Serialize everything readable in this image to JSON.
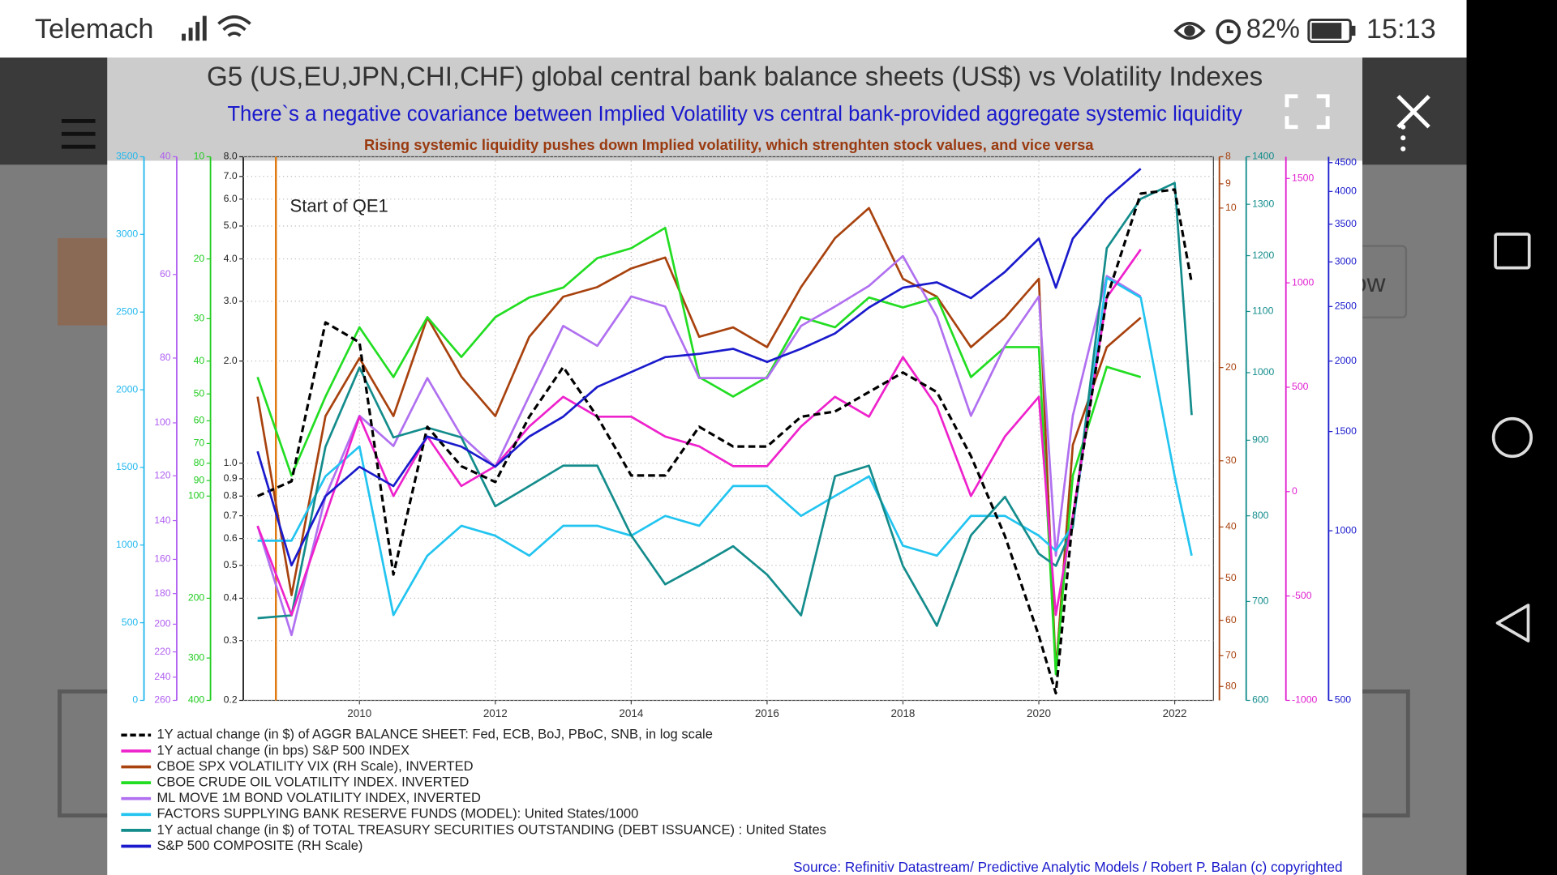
{
  "status_bar": {
    "carrier": "Telemach",
    "battery": "82%",
    "time": "15:13"
  },
  "background_text": "ow",
  "chart_data": {
    "type": "line",
    "title": "G5 (US,EU,JPN,CHI,CHF) global central bank balance sheets (US$) vs Volatility Indexes",
    "subtitle": "There`s a negative covariance between Implied Volatility vs central bank-provided aggregate systemic liquidity",
    "note": "Rising systemic liquidity pushes down Implied volatility, which strenghten stock values, and vice versa",
    "source": "Source: Refinitiv Datastream/ Predictive Analytic Models / Robert P. Balan (c) copyrighted",
    "annotation": {
      "text": "Start of QE1",
      "x": 2008.77,
      "color": "#e07a10"
    },
    "legend": "bottom",
    "x": [
      2008.5,
      2009,
      2009.5,
      2010,
      2010.5,
      2011,
      2011.5,
      2012,
      2012.5,
      2013,
      2013.5,
      2014,
      2014.5,
      2015,
      2015.5,
      2016,
      2016.5,
      2017,
      2017.5,
      2018,
      2018.5,
      2019,
      2019.5,
      2020,
      2020.25,
      2020.5,
      2021,
      2021.5,
      2022,
      2022.25
    ],
    "xlim": [
      2008.29,
      2022.57
    ],
    "xticks": [
      2010,
      2012,
      2014,
      2016,
      2018,
      2020,
      2022
    ],
    "axes": [
      {
        "side": "left",
        "color": "#22b8ee",
        "log": false,
        "ylim": [
          0,
          3500
        ],
        "yticks": [
          0,
          500,
          1000,
          1500,
          2000,
          2500,
          3000,
          3500
        ]
      },
      {
        "side": "left",
        "color": "#b060f0",
        "log": true,
        "ylim": [
          260,
          40
        ],
        "yticks": [
          40,
          60,
          80,
          100,
          120,
          140,
          160,
          180,
          200,
          220,
          240,
          260
        ]
      },
      {
        "side": "left",
        "color": "#22cc22",
        "log": true,
        "ylim": [
          400,
          10
        ],
        "yticks": [
          10,
          20,
          30,
          40,
          50,
          60,
          70,
          80,
          90,
          100,
          200,
          300,
          400
        ]
      },
      {
        "side": "left",
        "color": "#222222",
        "log": true,
        "grid": true,
        "ylim": [
          0.2,
          8
        ],
        "yticks": [
          0.2,
          0.3,
          0.4,
          0.5,
          0.6,
          0.7,
          0.8,
          0.9,
          {
            "value": 1,
            "label": "1.0"
          },
          {
            "value": 2,
            "label": "2.0"
          },
          {
            "value": 3,
            "label": "3.0"
          },
          {
            "value": 4,
            "label": "4.0"
          },
          {
            "value": 5,
            "label": "5.0"
          },
          {
            "value": 6,
            "label": "6.0"
          },
          {
            "value": 7,
            "label": "7.0"
          },
          {
            "value": 8,
            "label": "8.0"
          }
        ]
      },
      {
        "side": "right",
        "color": "#a8420e",
        "log": true,
        "ylim": [
          85,
          8
        ],
        "yticks": [
          8,
          9,
          10,
          20,
          30,
          40,
          50,
          60,
          70,
          80
        ]
      },
      {
        "side": "right",
        "color": "#148c8c",
        "log": true,
        "ylim": [
          600,
          1400
        ],
        "yticks": [
          600,
          700,
          800,
          900,
          1000,
          1100,
          1200,
          1300,
          1400
        ]
      },
      {
        "side": "right",
        "color": "#e020d0",
        "log": false,
        "ylim": [
          -1000,
          1604
        ],
        "yticks": [
          -1000,
          -500,
          0,
          500,
          1000,
          1500
        ]
      },
      {
        "side": "right",
        "color": "#1a1acc",
        "log": true,
        "ylim": [
          500,
          4610
        ],
        "yticks": [
          500,
          1000,
          1500,
          2000,
          2500,
          3000,
          3500,
          4000,
          4500
        ]
      }
    ],
    "series": [
      {
        "name": "1Y actual change (in $) of AGGR BALANCE SHEET: Fed, ECB, BoJ, PBoC, SNB, in log scale",
        "color": "#000000",
        "dash": true,
        "axis": 3,
        "values": [
          0.8,
          0.885,
          2.6,
          2.27,
          0.47,
          1.28,
          0.98,
          0.88,
          1.37,
          1.92,
          1.37,
          0.92,
          0.92,
          1.28,
          1.12,
          1.12,
          1.37,
          1.42,
          1.62,
          1.85,
          1.62,
          1.05,
          0.61,
          0.31,
          0.21,
          0.69,
          3.07,
          6.23,
          6.4,
          3.4
        ]
      },
      {
        "name": "1Y actual change (in bps) S&P 500 INDEX",
        "color": "#ee22cc",
        "axis": 6,
        "values": [
          -164,
          -591,
          -116,
          359,
          -21,
          264,
          27,
          122,
          312,
          454,
          359,
          359,
          264,
          217,
          122,
          122,
          312,
          454,
          359,
          644,
          407,
          -21,
          264,
          454,
          -591,
          -116,
          930,
          1160,
          null,
          null
        ]
      },
      {
        "name": "CBOE SPX VOLATILITY VIX (RH Scale), INVERTED",
        "color": "#a8420e",
        "axis": 4,
        "values": [
          22.7,
          53.8,
          24.7,
          19.2,
          24.7,
          16.1,
          20.8,
          24.7,
          17.5,
          14.7,
          14.1,
          13,
          12.4,
          17.5,
          16.8,
          18.3,
          14.1,
          11.4,
          10,
          13.6,
          14.7,
          18.3,
          16.1,
          13.6,
          75,
          28,
          18.3,
          16.1,
          null,
          null
        ]
      },
      {
        "name": "CBOE CRUDE OIL VOLATILITY INDEX. INVERTED",
        "color": "#22dd22",
        "axis": 2,
        "values": [
          44.6,
          87,
          50.9,
          31.8,
          44.6,
          29.7,
          38.9,
          29.7,
          26,
          24.3,
          19.9,
          18.6,
          16.2,
          44.6,
          50.9,
          44.6,
          29.7,
          31.8,
          26,
          27.8,
          26,
          44.6,
          36.4,
          36.4,
          335,
          87,
          41.6,
          44.6,
          null,
          null
        ]
      },
      {
        "name": "ML MOVE 1M BOND VOLATILITY INDEX, INVERTED",
        "color": "#b070f0",
        "axis": 1,
        "values": [
          142.6,
          207.6,
          128.8,
          97.6,
          108.3,
          85.7,
          104.6,
          116.4,
          91.1,
          71.6,
          76.7,
          64.7,
          67,
          85.7,
          85.7,
          85.7,
          71.6,
          67,
          62.4,
          56.3,
          69.4,
          97.6,
          76.7,
          64.7,
          158,
          97.6,
          60.3,
          64.7,
          null,
          null
        ]
      },
      {
        "name": "FACTORS SUPPLYING BANK RESERVE FUNDS (MODEL): United States/1000",
        "color": "#22c4f0",
        "axis": 0,
        "values": [
          1028,
          1028,
          1443,
          1635,
          549,
          932,
          1124,
          1060,
          932,
          1124,
          1124,
          1060,
          1188,
          1124,
          1380,
          1380,
          1188,
          1316,
          1443,
          996,
          932,
          1188,
          1188,
          1060,
          964,
          1124,
          2721,
          2593,
          1443,
          932
        ]
      },
      {
        "name": "1Y actual change (in $) of TOTAL TREASURY SECURITIES OUTSTANDING (DEBT ISSUANCE) : United States",
        "color": "#148c8c",
        "axis": 5,
        "values": [
          682,
          685,
          891,
          1008,
          904,
          918,
          904,
          812,
          838,
          865,
          865,
          776,
          719,
          740,
          763,
          730,
          685,
          851,
          865,
          740,
          674,
          776,
          824,
          754,
          740,
          786,
          1214,
          1311,
          1344,
          936
        ]
      },
      {
        "name": "S&P 500 COMPOSITE (RH Scale)",
        "color": "#1a1acc",
        "axis": 7,
        "values": [
          1383,
          868,
          1152,
          1299,
          1200,
          1470,
          1410,
          1300,
          1470,
          1594,
          1800,
          1913,
          2033,
          2060,
          2103,
          1994,
          2103,
          2240,
          2489,
          2700,
          2760,
          2587,
          2880,
          3300,
          2700,
          3300,
          3890,
          4390,
          null,
          null
        ]
      }
    ]
  }
}
